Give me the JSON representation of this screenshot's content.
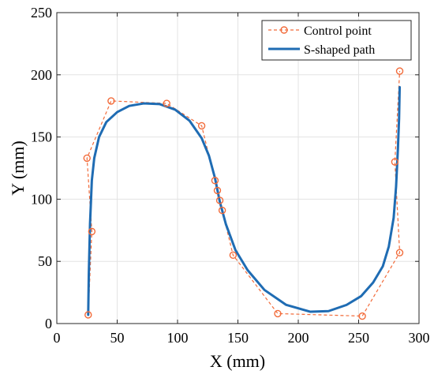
{
  "chart_data": {
    "type": "line",
    "title": "",
    "xlabel": "X (mm)",
    "ylabel": "Y (mm)",
    "xlim": [
      0,
      300
    ],
    "ylim": [
      0,
      250
    ],
    "xticks": [
      0,
      50,
      100,
      150,
      200,
      250,
      300
    ],
    "yticks": [
      0,
      50,
      100,
      150,
      200,
      250
    ],
    "xtick_labels": [
      "0",
      "50",
      "100",
      "150",
      "200",
      "250",
      "300"
    ],
    "ytick_labels": [
      "0",
      "50",
      "100",
      "150",
      "200",
      "250"
    ],
    "grid": true,
    "legend_position": "top-right",
    "series": [
      {
        "name": "Control point",
        "style": "dashed-line-circle-markers",
        "color": "#F26B3A",
        "x": [
          26,
          29,
          25,
          45,
          91,
          120,
          131,
          133,
          135,
          137,
          146,
          183,
          253,
          284,
          280,
          284
        ],
        "y": [
          7,
          74,
          133,
          179,
          177,
          159,
          115,
          107,
          99,
          91,
          55,
          8,
          6,
          57,
          130,
          203
        ]
      },
      {
        "name": "S-shaped path",
        "style": "solid-line",
        "color": "#1F6CB3",
        "x": [
          26,
          26.5,
          27.5,
          29,
          31,
          35,
          41,
          50,
          60,
          72,
          85,
          98,
          110,
          120,
          126,
          131,
          135,
          140,
          148,
          158,
          172,
          190,
          210,
          225,
          240,
          252,
          262,
          270,
          275,
          279,
          281,
          282.5,
          283.5,
          284
        ],
        "y": [
          7,
          40,
          80,
          115,
          133,
          150,
          162,
          170,
          175,
          177,
          176.5,
          172,
          163,
          149,
          135,
          117,
          98,
          80,
          59,
          43,
          27,
          15,
          9.5,
          10,
          15,
          22,
          33,
          46,
          62,
          85,
          110,
          140,
          165,
          190
        ]
      }
    ]
  }
}
